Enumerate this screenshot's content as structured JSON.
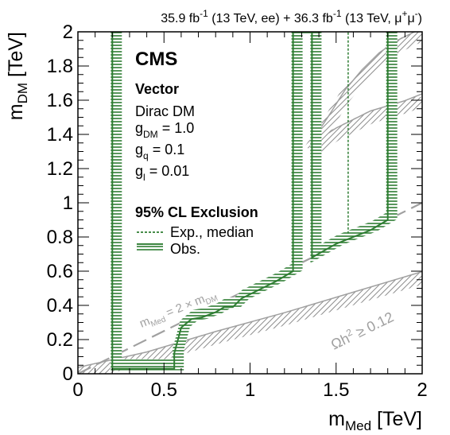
{
  "chart_data": {
    "type": "line",
    "header": {
      "lumi_ee": "35.9 fb",
      "lumi_ee_sup": "-1",
      "energy_ee": " (13 TeV, ee) + ",
      "lumi_mm": "36.3 fb",
      "lumi_mm_sup": "-1",
      "energy_mm": " (13 TeV, μ",
      "mu_sup_plus": "+",
      "mu": "μ",
      "mu_sup_minus": "-",
      "close": ")"
    },
    "xlabel": {
      "main": "m",
      "sub": "Med",
      "unit": " [TeV]"
    },
    "ylabel": {
      "main": "m",
      "sub": "DM",
      "unit": " [TeV]"
    },
    "xlim": [
      0,
      2
    ],
    "ylim": [
      0,
      2
    ],
    "xticks": [
      0,
      0.5,
      1,
      1.5,
      2
    ],
    "yticks": [
      0,
      0.2,
      0.4,
      0.6,
      0.8,
      1,
      1.2,
      1.4,
      1.6,
      1.8,
      2
    ],
    "xtick_labels": [
      "0",
      "0.5",
      "1",
      "1.5",
      "2"
    ],
    "ytick_labels": [
      "0",
      "0.2",
      "0.4",
      "0.6",
      "0.8",
      "1",
      "1.2",
      "1.4",
      "1.6",
      "1.8",
      "2"
    ],
    "grid": false,
    "legend_placement": "top-left",
    "text_block": {
      "experiment": "CMS",
      "model": "Vector",
      "dm_type": "Dirac DM",
      "g_dm_main": "g",
      "g_dm_sub": "DM",
      "g_dm_val": " = 1.0",
      "g_q_main": "g",
      "g_q_sub": "q",
      "g_q_val": " = 0.1",
      "g_l_main": "g",
      "g_l_sub": "l",
      "g_l_val": " = 0.01",
      "exclusion": "95% CL Exclusion",
      "legend_expected": "Exp., median",
      "legend_observed": "Obs."
    },
    "annotations": {
      "diag_main": "m",
      "diag_sub1": "Med",
      "diag_mid": " = 2 × m",
      "diag_sub2": "DM",
      "relic_main": "Ωh",
      "relic_sup": "2",
      "relic_rest": " ≥ 0.12"
    },
    "series": [
      {
        "name": "Obs.",
        "color": "#2e7d32",
        "x": [
          0.2,
          0.2,
          0.56,
          0.56,
          0.6,
          0.66,
          0.72,
          0.8,
          0.85,
          0.9,
          0.95,
          1.05,
          1.15,
          1.25,
          1.25,
          1.36,
          1.36,
          1.5,
          1.6,
          1.7,
          1.8,
          1.8
        ],
        "y": [
          2.0,
          0.03,
          0.03,
          0.12,
          0.27,
          0.32,
          0.33,
          0.36,
          0.39,
          0.39,
          0.44,
          0.49,
          0.54,
          0.6,
          2.0,
          2.0,
          0.68,
          0.76,
          0.8,
          0.84,
          0.9,
          2.0
        ]
      },
      {
        "name": "Exp., median",
        "color": "#2e7d32",
        "x": [
          1.57,
          1.57
        ],
        "y": [
          0.82,
          2.0
        ]
      }
    ],
    "relic_bands": [
      {
        "x": [
          0.0,
          0.4,
          0.8,
          1.2,
          1.6,
          2.0
        ],
        "y": [
          0.0,
          0.09,
          0.21,
          0.32,
          0.44,
          0.56
        ]
      },
      {
        "x": [
          1.35,
          1.5,
          1.7,
          1.9,
          2.0
        ],
        "y": [
          1.3,
          1.4,
          1.5,
          1.56,
          1.6
        ]
      },
      {
        "x": [
          1.35,
          1.45,
          1.55,
          1.65,
          1.75,
          1.85,
          1.95,
          2.0
        ],
        "y": [
          1.31,
          1.46,
          1.62,
          1.74,
          1.84,
          1.91,
          1.96,
          1.98
        ]
      }
    ],
    "colors": {
      "observed": "#2e7d32",
      "expected": "#2e7d32",
      "relic": "#a0a0a0",
      "diagonal": "#a0a0a0"
    }
  }
}
